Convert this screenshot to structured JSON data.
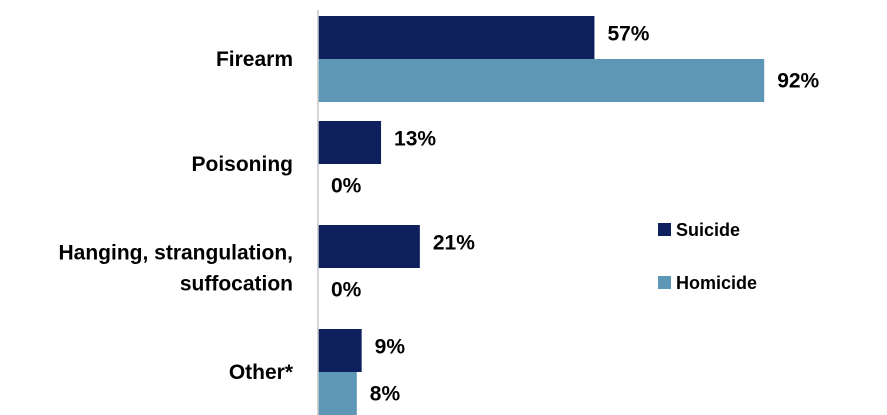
{
  "chart_data": {
    "type": "bar",
    "orientation": "horizontal",
    "categories": [
      "Firearm",
      "Poisoning",
      "Hanging, strangulation, suffocation",
      "Other*"
    ],
    "category_lines": [
      [
        "Firearm"
      ],
      [
        "Poisoning"
      ],
      [
        "Hanging, strangulation,",
        "suffocation"
      ],
      [
        "Other*"
      ]
    ],
    "series": [
      {
        "name": "Suicide",
        "values": [
          57,
          13,
          21,
          9
        ],
        "labels": [
          "57%",
          "13%",
          "21%",
          "9%"
        ],
        "color": "#0d1f5c"
      },
      {
        "name": "Homicide",
        "values": [
          92,
          0,
          0,
          8
        ],
        "labels": [
          "92%",
          "0%",
          "0%",
          "8%"
        ],
        "color": "#5e96b5"
      }
    ],
    "xlim": [
      0,
      100
    ],
    "unit": "%",
    "grid": false,
    "legend_position": "right"
  }
}
